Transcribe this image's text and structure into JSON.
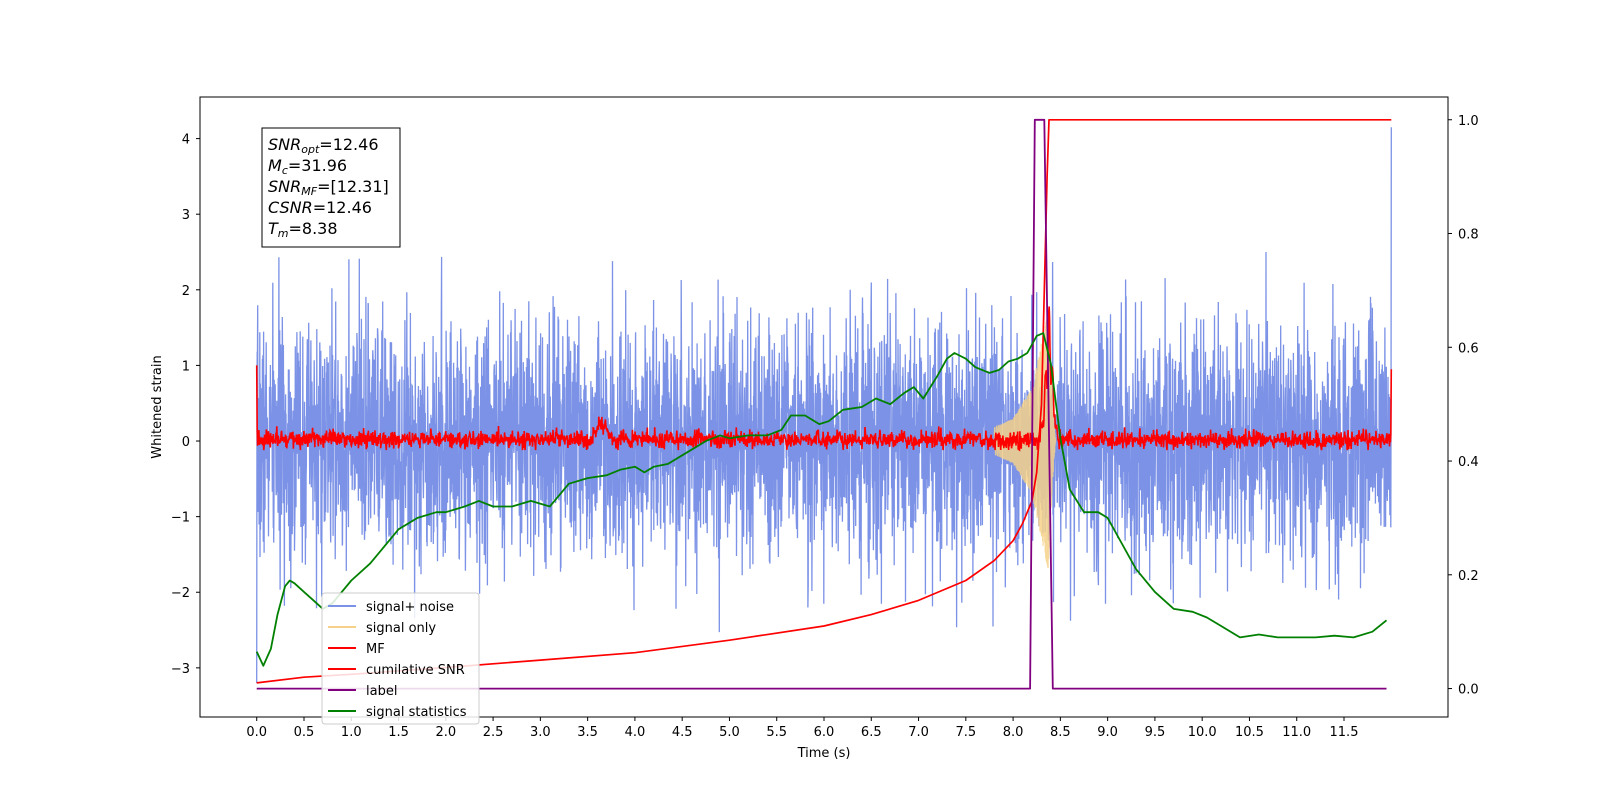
{
  "chart_data": {
    "type": "line",
    "title": "",
    "xlabel": "Time (s)",
    "ylabel": "Whitened strain",
    "xlim": [
      -0.6,
      12.6
    ],
    "ylim": [
      -3.65,
      4.55
    ],
    "y2lim": [
      -0.05,
      1.04
    ],
    "x_ticks": [
      "0.0",
      "0.5",
      "1.0",
      "1.5",
      "2.0",
      "2.5",
      "3.0",
      "3.5",
      "4.0",
      "4.5",
      "5.0",
      "5.5",
      "6.0",
      "6.5",
      "7.0",
      "7.5",
      "8.0",
      "8.5",
      "9.0",
      "9.5",
      "10.0",
      "10.5",
      "11.0",
      "11.5"
    ],
    "y_ticks": [
      "4",
      "3",
      "2",
      "1",
      "0",
      "−1",
      "−2",
      "−3"
    ],
    "y2_ticks": [
      "1.0",
      "0.8",
      "0.6",
      "0.4",
      "0.2",
      "0.0"
    ],
    "grid": false,
    "legend_position": "lower-left",
    "annotation": [
      {
        "main": "SNR",
        "sub": "opt",
        "rest": "=12.46"
      },
      {
        "main": "M",
        "sub": "c",
        "rest": "=31.96"
      },
      {
        "main": "SNR",
        "sub": "MF",
        "rest": "=[12.31]"
      },
      {
        "main": "CSNR",
        "sub": "",
        "rest": "=12.46"
      },
      {
        "main": "T",
        "sub": "m",
        "rest": "=8.38"
      }
    ],
    "series": [
      {
        "name": "signal+ noise",
        "color": "#7b92e6",
        "axis": "left",
        "kind": "noise",
        "x_range": [
          0.0,
          12.0
        ],
        "envelope_max": 2.5,
        "envelope_min": -2.9,
        "endpoints": {
          "start": -3.2,
          "end": 4.15
        }
      },
      {
        "name": "signal only",
        "color": "#f5d18a",
        "axis": "left",
        "kind": "chirp",
        "x_range": [
          7.8,
          8.45
        ],
        "envelope": [
          [
            7.8,
            0.18
          ],
          [
            8.0,
            0.3
          ],
          [
            8.2,
            0.7
          ],
          [
            8.3,
            1.3
          ],
          [
            8.37,
            1.7
          ],
          [
            8.43,
            0.3
          ],
          [
            8.45,
            0.0
          ]
        ]
      },
      {
        "name": "MF",
        "color": "#ff0000",
        "axis": "left",
        "kind": "mf",
        "x_range": [
          0.0,
          12.0
        ],
        "baseline": 0.02,
        "amplitude": 0.12,
        "endpoints": {
          "start": 1.0,
          "end": 0.95
        },
        "bumps": [
          [
            3.65,
            0.3
          ],
          [
            8.38,
            1.75
          ]
        ]
      },
      {
        "name": "cumilative SNR",
        "color": "#ff0000",
        "axis": "right",
        "points": [
          [
            0.0,
            0.01
          ],
          [
            0.5,
            0.02
          ],
          [
            1.0,
            0.025
          ],
          [
            2.0,
            0.037
          ],
          [
            3.0,
            0.05
          ],
          [
            4.0,
            0.063
          ],
          [
            5.0,
            0.085
          ],
          [
            6.0,
            0.11
          ],
          [
            6.5,
            0.13
          ],
          [
            7.0,
            0.155
          ],
          [
            7.5,
            0.19
          ],
          [
            7.8,
            0.225
          ],
          [
            8.0,
            0.26
          ],
          [
            8.1,
            0.29
          ],
          [
            8.2,
            0.33
          ],
          [
            8.25,
            0.38
          ],
          [
            8.3,
            0.5
          ],
          [
            8.33,
            0.7
          ],
          [
            8.36,
            0.9
          ],
          [
            8.38,
            1.0
          ],
          [
            12.0,
            1.0
          ]
        ]
      },
      {
        "name": "label",
        "color": "#800080",
        "axis": "right",
        "points": [
          [
            0.0,
            0.0
          ],
          [
            8.18,
            0.0
          ],
          [
            8.23,
            1.0
          ],
          [
            8.33,
            1.0
          ],
          [
            8.42,
            0.0
          ],
          [
            11.95,
            0.0
          ]
        ]
      },
      {
        "name": "signal statistics",
        "color": "#008000",
        "axis": "right",
        "points": [
          [
            0.0,
            0.065
          ],
          [
            0.07,
            0.04
          ],
          [
            0.15,
            0.07
          ],
          [
            0.22,
            0.13
          ],
          [
            0.3,
            0.18
          ],
          [
            0.35,
            0.19
          ],
          [
            0.4,
            0.185
          ],
          [
            0.5,
            0.17
          ],
          [
            0.6,
            0.155
          ],
          [
            0.7,
            0.14
          ],
          [
            0.8,
            0.15
          ],
          [
            0.9,
            0.17
          ],
          [
            1.0,
            0.19
          ],
          [
            1.2,
            0.22
          ],
          [
            1.4,
            0.26
          ],
          [
            1.5,
            0.28
          ],
          [
            1.7,
            0.3
          ],
          [
            1.9,
            0.31
          ],
          [
            2.0,
            0.31
          ],
          [
            2.2,
            0.32
          ],
          [
            2.35,
            0.33
          ],
          [
            2.5,
            0.32
          ],
          [
            2.7,
            0.32
          ],
          [
            2.9,
            0.33
          ],
          [
            3.1,
            0.32
          ],
          [
            3.2,
            0.34
          ],
          [
            3.3,
            0.36
          ],
          [
            3.5,
            0.37
          ],
          [
            3.7,
            0.375
          ],
          [
            3.85,
            0.385
          ],
          [
            4.0,
            0.39
          ],
          [
            4.1,
            0.38
          ],
          [
            4.2,
            0.39
          ],
          [
            4.35,
            0.395
          ],
          [
            4.5,
            0.41
          ],
          [
            4.6,
            0.42
          ],
          [
            4.75,
            0.435
          ],
          [
            4.9,
            0.445
          ],
          [
            5.0,
            0.44
          ],
          [
            5.2,
            0.445
          ],
          [
            5.4,
            0.445
          ],
          [
            5.55,
            0.455
          ],
          [
            5.65,
            0.48
          ],
          [
            5.8,
            0.48
          ],
          [
            5.95,
            0.465
          ],
          [
            6.05,
            0.47
          ],
          [
            6.2,
            0.49
          ],
          [
            6.4,
            0.495
          ],
          [
            6.55,
            0.51
          ],
          [
            6.7,
            0.5
          ],
          [
            6.85,
            0.52
          ],
          [
            6.95,
            0.53
          ],
          [
            7.05,
            0.51
          ],
          [
            7.2,
            0.55
          ],
          [
            7.3,
            0.58
          ],
          [
            7.38,
            0.59
          ],
          [
            7.5,
            0.58
          ],
          [
            7.6,
            0.565
          ],
          [
            7.75,
            0.555
          ],
          [
            7.85,
            0.56
          ],
          [
            7.95,
            0.575
          ],
          [
            8.05,
            0.58
          ],
          [
            8.15,
            0.59
          ],
          [
            8.25,
            0.62
          ],
          [
            8.32,
            0.625
          ],
          [
            8.4,
            0.57
          ],
          [
            8.5,
            0.44
          ],
          [
            8.6,
            0.35
          ],
          [
            8.75,
            0.31
          ],
          [
            8.9,
            0.31
          ],
          [
            9.0,
            0.3
          ],
          [
            9.1,
            0.27
          ],
          [
            9.3,
            0.21
          ],
          [
            9.5,
            0.17
          ],
          [
            9.7,
            0.14
          ],
          [
            9.9,
            0.135
          ],
          [
            10.05,
            0.125
          ],
          [
            10.2,
            0.11
          ],
          [
            10.4,
            0.09
          ],
          [
            10.6,
            0.095
          ],
          [
            10.8,
            0.09
          ],
          [
            11.0,
            0.09
          ],
          [
            11.2,
            0.09
          ],
          [
            11.4,
            0.093
          ],
          [
            11.6,
            0.09
          ],
          [
            11.8,
            0.1
          ],
          [
            11.95,
            0.12
          ]
        ]
      }
    ]
  }
}
